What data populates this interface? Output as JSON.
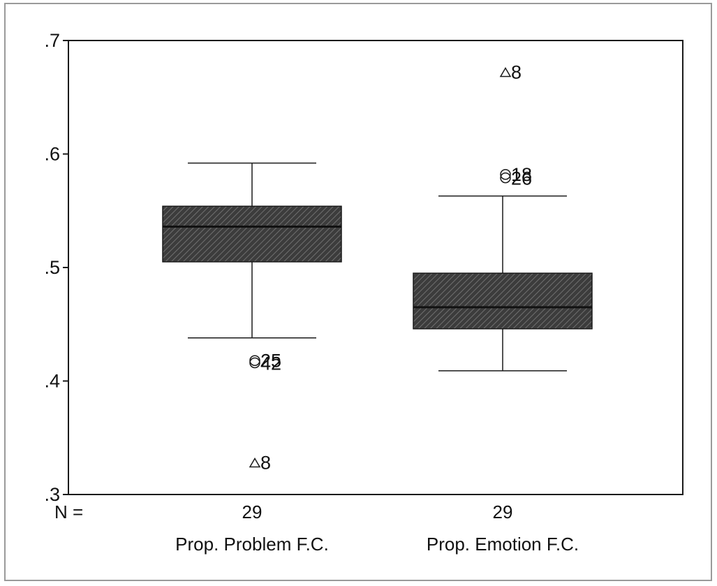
{
  "chart_data": {
    "type": "boxplot",
    "title": "",
    "xlabel": "",
    "ylabel": "",
    "ylim": [
      0.3,
      0.7
    ],
    "yticks": [
      {
        "value": 0.3,
        "label": ".3"
      },
      {
        "value": 0.4,
        "label": ".4"
      },
      {
        "value": 0.5,
        "label": ".5"
      },
      {
        "value": 0.6,
        "label": ".6"
      },
      {
        "value": 0.7,
        "label": ".7"
      }
    ],
    "grid": false,
    "n_label": "N =",
    "categories": [
      "Prop. Problem F.C.",
      "Prop. Emotion F.C."
    ],
    "boxes": [
      {
        "category": "Prop. Problem F.C.",
        "n": "29",
        "min": 0.438,
        "q1": 0.505,
        "median": 0.536,
        "q3": 0.554,
        "max": 0.592,
        "outliers": [
          {
            "value": 0.418,
            "marker": "circle",
            "label": "25"
          },
          {
            "value": 0.416,
            "marker": "circle",
            "label": "42"
          },
          {
            "value": 0.328,
            "marker": "triangle",
            "label": "8"
          }
        ]
      },
      {
        "category": "Prop. Emotion F.C.",
        "n": "29",
        "min": 0.409,
        "q1": 0.446,
        "median": 0.465,
        "q3": 0.495,
        "max": 0.563,
        "outliers": [
          {
            "value": 0.672,
            "marker": "triangle",
            "label": "8"
          },
          {
            "value": 0.582,
            "marker": "circle",
            "label": "18"
          },
          {
            "value": 0.579,
            "marker": "circle",
            "label": "26"
          }
        ]
      }
    ],
    "colors": {
      "box_fill": "#3c3c3c",
      "hatch": "#6e6e6e",
      "axis": "#1a1a1a",
      "frame": "#9a9a9a"
    }
  }
}
